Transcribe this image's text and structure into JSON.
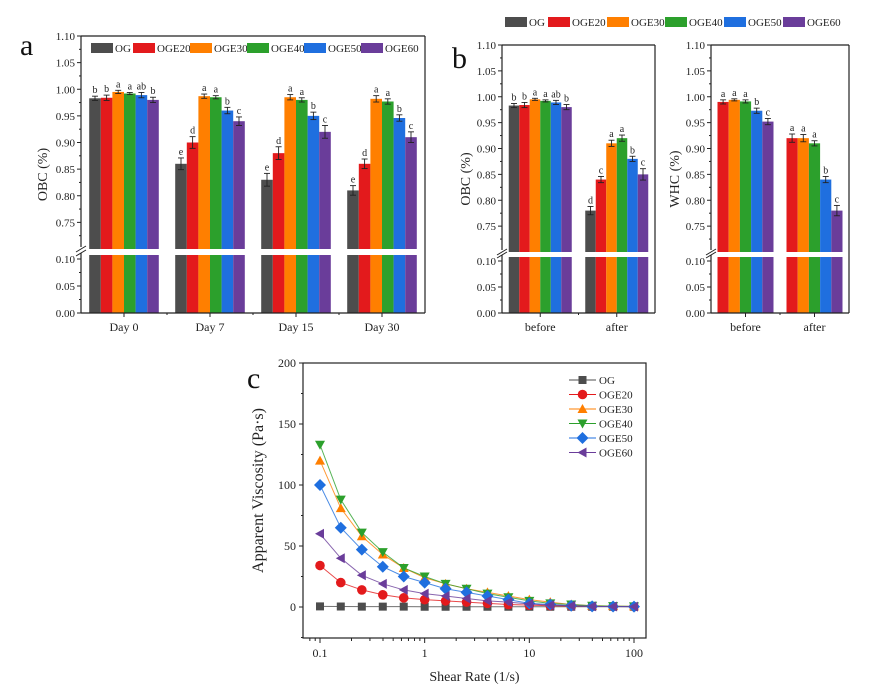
{
  "series_colors": {
    "OG": "#4d4d4d",
    "OGE20": "#e31a1c",
    "OGE30": "#ff7f00",
    "OGE40": "#2ca02c",
    "OGE50": "#1f6fdf",
    "OGE60": "#6a3d9a"
  },
  "chart_data": [
    {
      "panel": "a",
      "type": "bar",
      "title": "",
      "xlabel": "",
      "ylabel": "OBC (%)",
      "ylim": [
        0,
        1.1
      ],
      "axis_break": [
        0.1,
        0.7
      ],
      "yticks": [
        "0.00",
        "0.05",
        "0.10",
        "0.75",
        "0.80",
        "0.85",
        "0.90",
        "0.95",
        "1.00",
        "1.05",
        "1.10"
      ],
      "categories": [
        "Day 0",
        "Day 7",
        "Day 15",
        "Day 30"
      ],
      "legend": [
        "OG",
        "OGE20",
        "OGE30",
        "OGE40",
        "OGE50",
        "OGE60"
      ],
      "legend_position": "top inside",
      "series": [
        {
          "name": "OG",
          "values": [
            0.983,
            0.86,
            0.83,
            0.81
          ],
          "errors": [
            0.004,
            0.011,
            0.012,
            0.009
          ],
          "labels": [
            "b",
            "e",
            "e",
            "e"
          ]
        },
        {
          "name": "OGE20",
          "values": [
            0.984,
            0.9,
            0.88,
            0.86
          ],
          "errors": [
            0.005,
            0.011,
            0.012,
            0.009
          ],
          "labels": [
            "b",
            "d",
            "d",
            "d"
          ]
        },
        {
          "name": "OGE30",
          "values": [
            0.995,
            0.987,
            0.985,
            0.982
          ],
          "errors": [
            0.003,
            0.004,
            0.005,
            0.006
          ],
          "labels": [
            "a",
            "a",
            "a",
            "a"
          ]
        },
        {
          "name": "OGE40",
          "values": [
            0.992,
            0.985,
            0.98,
            0.977
          ],
          "errors": [
            0.002,
            0.003,
            0.004,
            0.005
          ],
          "labels": [
            "a",
            "a",
            "a",
            "a"
          ]
        },
        {
          "name": "OGE50",
          "values": [
            0.989,
            0.96,
            0.95,
            0.946
          ],
          "errors": [
            0.005,
            0.006,
            0.007,
            0.006
          ],
          "labels": [
            "ab",
            "b",
            "b",
            "b"
          ]
        },
        {
          "name": "OGE60",
          "values": [
            0.98,
            0.94,
            0.92,
            0.91
          ],
          "errors": [
            0.005,
            0.008,
            0.012,
            0.01
          ],
          "labels": [
            "b",
            "c",
            "c",
            "c"
          ]
        }
      ]
    },
    {
      "panel": "b-left",
      "type": "bar",
      "title": "",
      "xlabel": "",
      "ylabel": "OBC (%)",
      "ylim": [
        0,
        1.1
      ],
      "axis_break": [
        0.1,
        0.7
      ],
      "yticks": [
        "0.00",
        "0.05",
        "0.10",
        "0.75",
        "0.80",
        "0.85",
        "0.90",
        "0.95",
        "1.00",
        "1.05",
        "1.10"
      ],
      "categories": [
        "before",
        "after"
      ],
      "legend": [
        "OG",
        "OGE20",
        "OGE30",
        "OGE40",
        "OGE50",
        "OGE60"
      ],
      "legend_position": "top outside",
      "series": [
        {
          "name": "OG",
          "values": [
            0.983,
            0.78
          ],
          "errors": [
            0.004,
            0.008
          ],
          "labels": [
            "b",
            "d"
          ]
        },
        {
          "name": "OGE20",
          "values": [
            0.984,
            0.84
          ],
          "errors": [
            0.005,
            0.006
          ],
          "labels": [
            "b",
            "c"
          ]
        },
        {
          "name": "OGE30",
          "values": [
            0.995,
            0.91
          ],
          "errors": [
            0.002,
            0.006
          ],
          "labels": [
            "a",
            "a"
          ]
        },
        {
          "name": "OGE40",
          "values": [
            0.992,
            0.92
          ],
          "errors": [
            0.002,
            0.006
          ],
          "labels": [
            "a",
            "a"
          ]
        },
        {
          "name": "OGE50",
          "values": [
            0.989,
            0.88
          ],
          "errors": [
            0.004,
            0.005
          ],
          "labels": [
            "ab",
            "b"
          ]
        },
        {
          "name": "OGE60",
          "values": [
            0.98,
            0.85
          ],
          "errors": [
            0.005,
            0.011
          ],
          "labels": [
            "b",
            "c"
          ]
        }
      ]
    },
    {
      "panel": "b-right",
      "type": "bar",
      "title": "",
      "xlabel": "",
      "ylabel": "WHC (%)",
      "ylim": [
        0,
        1.1
      ],
      "axis_break": [
        0.1,
        0.7
      ],
      "yticks": [
        "0.00",
        "0.05",
        "0.10",
        "0.75",
        "0.80",
        "0.85",
        "0.90",
        "0.95",
        "1.00",
        "1.05",
        "1.10"
      ],
      "categories": [
        "before",
        "after"
      ],
      "series": [
        {
          "name": "OGE20",
          "values": [
            0.99,
            0.92
          ],
          "errors": [
            0.004,
            0.008
          ],
          "labels": [
            "a",
            "a"
          ]
        },
        {
          "name": "OGE30",
          "values": [
            0.994,
            0.92
          ],
          "errors": [
            0.002,
            0.007
          ],
          "labels": [
            "a",
            "a"
          ]
        },
        {
          "name": "OGE40",
          "values": [
            0.991,
            0.91
          ],
          "errors": [
            0.003,
            0.005
          ],
          "labels": [
            "a",
            "a"
          ]
        },
        {
          "name": "OGE50",
          "values": [
            0.973,
            0.84
          ],
          "errors": [
            0.005,
            0.006
          ],
          "labels": [
            "b",
            "b"
          ]
        },
        {
          "name": "OGE60",
          "values": [
            0.952,
            0.78
          ],
          "errors": [
            0.006,
            0.01
          ],
          "labels": [
            "c",
            "c"
          ]
        }
      ]
    },
    {
      "panel": "c",
      "type": "line",
      "title": "",
      "xlabel": "Shear Rate (1/s)",
      "ylabel": "Apparent Viscosity (Pa·s)",
      "xscale": "log",
      "xlim": [
        0.075,
        130
      ],
      "ylim": [
        -25,
        200
      ],
      "xticks": [
        "0.1",
        "1",
        "10",
        "100"
      ],
      "yticks": [
        "0",
        "50",
        "100",
        "150",
        "200"
      ],
      "legend_position": "top-right",
      "x": [
        0.1,
        0.158,
        0.251,
        0.398,
        0.631,
        1,
        1.585,
        2.512,
        3.981,
        6.31,
        10,
        15.85,
        25.12,
        39.81,
        63.1,
        100
      ],
      "series": [
        {
          "name": "OG",
          "marker": "square",
          "values": [
            0.5,
            0.4,
            0.3,
            0.3,
            0.3,
            0.2,
            0.2,
            0.2,
            0.2,
            0.2,
            0.2,
            0.2,
            0.2,
            0.2,
            0.2,
            0.2
          ]
        },
        {
          "name": "OGE20",
          "marker": "circle",
          "values": [
            34,
            20,
            14,
            10,
            7.5,
            6,
            5,
            4,
            3,
            2,
            1.5,
            1,
            0.7,
            0.5,
            0.4,
            0.3
          ]
        },
        {
          "name": "OGE30",
          "marker": "triangle-up",
          "values": [
            120,
            81,
            58,
            43,
            32,
            24,
            19,
            15,
            12,
            9,
            6,
            4,
            2,
            1,
            0.7,
            0.5
          ]
        },
        {
          "name": "OGE40",
          "marker": "triangle-down",
          "values": [
            133,
            88,
            61,
            45,
            32,
            25,
            19,
            15,
            11,
            8,
            5,
            3,
            2,
            1,
            0.7,
            0.5
          ]
        },
        {
          "name": "OGE50",
          "marker": "diamond",
          "values": [
            100,
            65,
            47,
            33,
            25,
            20,
            15,
            12,
            9,
            6,
            3,
            2,
            1,
            0.5,
            0.4,
            0.3
          ]
        },
        {
          "name": "OGE60",
          "marker": "triangle-left",
          "values": [
            60,
            40,
            26,
            19,
            14,
            11,
            9,
            7,
            5,
            4,
            2.5,
            1.5,
            1,
            0.5,
            0.4,
            0.3
          ]
        }
      ]
    }
  ],
  "panel_letters": {
    "a": "a",
    "b": "b",
    "c": "c"
  }
}
